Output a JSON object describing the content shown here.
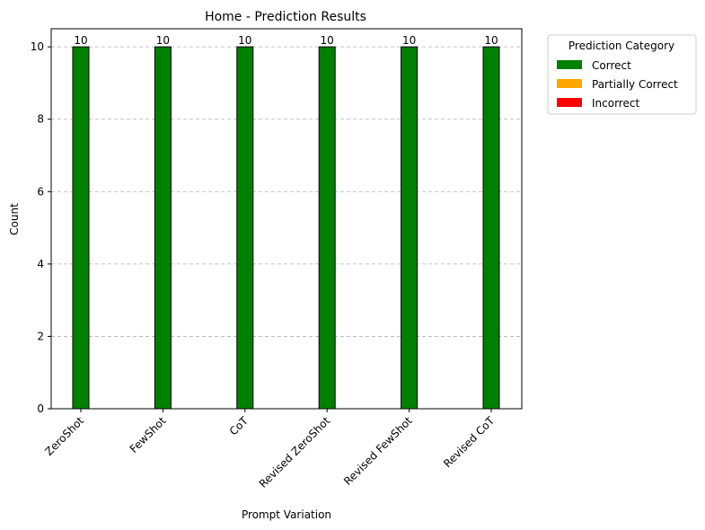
{
  "chart_data": {
    "type": "bar",
    "title": "Home - Prediction Results",
    "xlabel": "Prompt Variation",
    "ylabel": "Count",
    "categories": [
      "ZeroShot",
      "FewShot",
      "CoT",
      "Revised ZeroShot",
      "Revised FewShot",
      "Revised CoT"
    ],
    "series": [
      {
        "name": "Correct",
        "color": "#008000",
        "values": [
          10,
          10,
          10,
          10,
          10,
          10
        ]
      },
      {
        "name": "Partially Correct",
        "color": "#FFA500",
        "values": [
          0,
          0,
          0,
          0,
          0,
          0
        ]
      },
      {
        "name": "Incorrect",
        "color": "#FF0000",
        "values": [
          0,
          0,
          0,
          0,
          0,
          0
        ]
      }
    ],
    "data_labels": [
      "10",
      "10",
      "10",
      "10",
      "10",
      "10"
    ],
    "ylim": [
      0,
      10.5
    ],
    "yticks": [
      0,
      2,
      4,
      6,
      8,
      10
    ],
    "grid": "y-dashed",
    "legend": {
      "title": "Prediction Category",
      "placement": "outside-top-right",
      "items": [
        "Correct",
        "Partially Correct",
        "Incorrect"
      ]
    }
  }
}
